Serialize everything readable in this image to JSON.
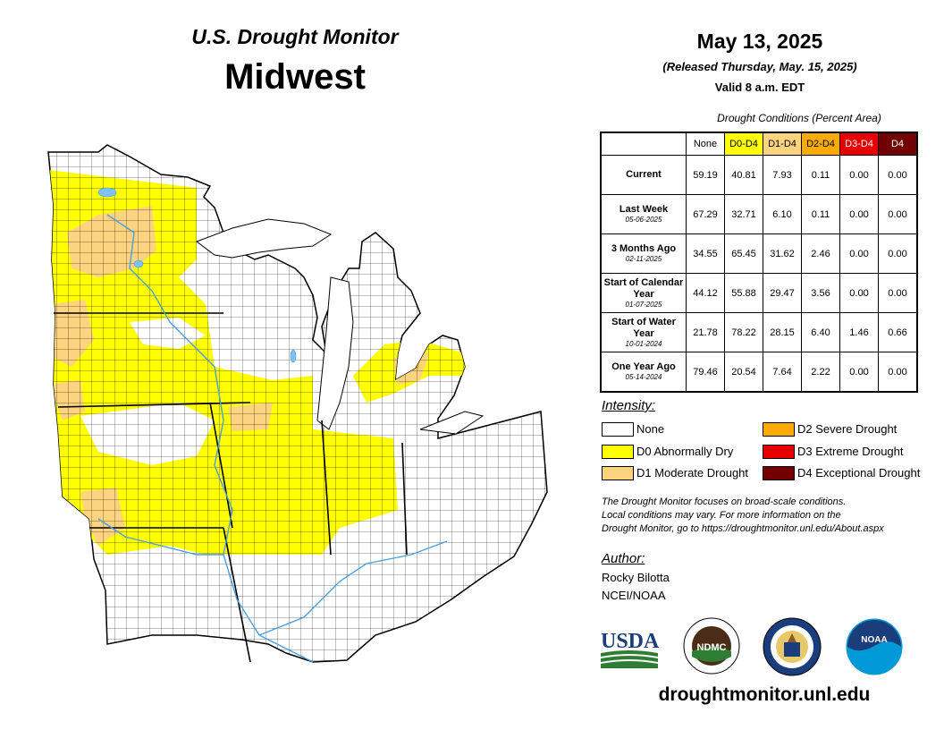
{
  "header": {
    "subtitle": "U.S. Drought Monitor",
    "region": "Midwest",
    "date": "May 13, 2025",
    "released": "(Released Thursday, May. 15, 2025)",
    "valid": "Valid 8 a.m. EDT"
  },
  "chart_data": {
    "type": "table",
    "title": "Drought Conditions (Percent Area)",
    "columns": [
      "None",
      "D0-D4",
      "D1-D4",
      "D2-D4",
      "D3-D4",
      "D4"
    ],
    "column_colors": [
      "#ffffff",
      "#ffff00",
      "#fcd37f",
      "#ffaa00",
      "#e60000",
      "#730000"
    ],
    "rows": [
      {
        "label": "Current",
        "date": "",
        "values": [
          "59.19",
          "40.81",
          "7.93",
          "0.11",
          "0.00",
          "0.00"
        ]
      },
      {
        "label": "Last Week",
        "date": "05-06-2025",
        "values": [
          "67.29",
          "32.71",
          "6.10",
          "0.11",
          "0.00",
          "0.00"
        ]
      },
      {
        "label": "3 Months Ago",
        "date": "02-11-2025",
        "values": [
          "34.55",
          "65.45",
          "31.62",
          "2.46",
          "0.00",
          "0.00"
        ]
      },
      {
        "label": "Start of Calendar Year",
        "date": "01-07-2025",
        "values": [
          "44.12",
          "55.88",
          "29.47",
          "3.56",
          "0.00",
          "0.00"
        ]
      },
      {
        "label": "Start of Water Year",
        "date": "10-01-2024",
        "values": [
          "21.78",
          "78.22",
          "28.15",
          "6.40",
          "1.46",
          "0.66"
        ]
      },
      {
        "label": "One Year Ago",
        "date": "05-14-2024",
        "values": [
          "79.46",
          "20.54",
          "7.64",
          "2.22",
          "0.00",
          "0.00"
        ]
      }
    ]
  },
  "legend": {
    "title": "Intensity:",
    "items": [
      {
        "label": "None",
        "color": "#ffffff"
      },
      {
        "label": "D0 Abnormally Dry",
        "color": "#ffff00"
      },
      {
        "label": "D1 Moderate Drought",
        "color": "#fcd37f"
      },
      {
        "label": "D2 Severe Drought",
        "color": "#ffaa00"
      },
      {
        "label": "D3 Extreme Drought",
        "color": "#e60000"
      },
      {
        "label": "D4 Exceptional Drought",
        "color": "#730000"
      }
    ]
  },
  "note": {
    "line1": "The Drought Monitor focuses on broad-scale conditions.",
    "line2": "Local conditions may vary. For more information on the",
    "line3": "Drought Monitor, go to https://droughtmonitor.unl.edu/About.aspx"
  },
  "author": {
    "title": "Author:",
    "name": "Rocky Bilotta",
    "org": "NCEI/NOAA"
  },
  "logos": {
    "usda": "USDA",
    "ndmc": "NDMC",
    "ndmc_ring": "NATIONAL DROUGHT MITIGATION CENTER",
    "noaa": "NOAA"
  },
  "footer": {
    "url": "droughtmonitor.unl.edu"
  }
}
